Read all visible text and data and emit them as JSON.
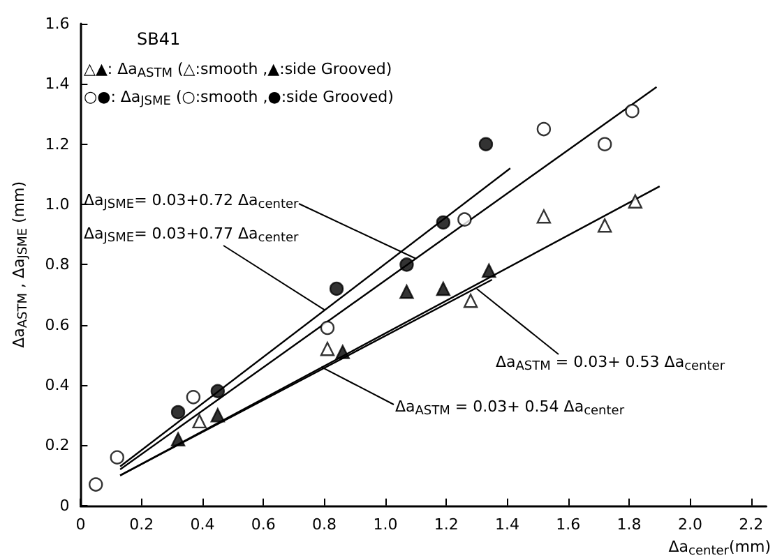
{
  "chart_data": {
    "type": "scatter",
    "legend_title": "SB41",
    "xlabel": "Δa$_{center}$(mm)",
    "ylabel": "Δa$_{ASTM}$ , Δa$_{JSME}$ (mm)",
    "xlim": [
      0,
      2.25
    ],
    "ylim": [
      0,
      1.6
    ],
    "xticks": [
      {
        "value": 0,
        "label": "0"
      },
      0.2,
      0.4,
      0.6,
      0.8,
      {
        "value": 1,
        "label": "1.0"
      },
      1.2,
      1.4,
      1.6,
      1.8,
      {
        "value": 2,
        "label": "2.0"
      },
      2.2
    ],
    "yticks": [
      {
        "value": 0,
        "label": "0"
      },
      0.2,
      0.4,
      0.6,
      0.8,
      {
        "value": 1,
        "label": "1.0"
      },
      1.2,
      1.4,
      1.6
    ],
    "grid": false,
    "series": [
      {
        "marker": "circle",
        "color": "#ffffff",
        "x": [
          0.05,
          0.12,
          0.37,
          0.81,
          1.26,
          1.52,
          1.72,
          1.81
        ],
        "values": [
          0.07,
          0.16,
          0.36,
          0.59,
          0.95,
          1.25,
          1.2,
          1.31
        ]
      },
      {
        "marker": "circle",
        "color": "#000000",
        "x": [
          0.32,
          0.45,
          0.84,
          1.07,
          1.19,
          1.33
        ],
        "values": [
          0.31,
          0.38,
          0.72,
          0.8,
          0.94,
          1.2
        ]
      },
      {
        "marker": "triangle",
        "color": "#ffffff",
        "x": [
          0.39,
          0.81,
          1.28,
          1.52,
          1.72,
          1.82
        ],
        "values": [
          0.28,
          0.52,
          0.68,
          0.96,
          0.93,
          1.01
        ]
      },
      {
        "marker": "triangle",
        "color": "#000000",
        "x": [
          0.32,
          0.45,
          0.86,
          1.07,
          1.19,
          1.34
        ],
        "values": [
          0.22,
          0.3,
          0.51,
          0.71,
          0.72,
          0.78
        ]
      },
      {
        "type": "line",
        "marker": "none",
        "color": "#000000",
        "x": [
          0.13,
          1.89
        ],
        "values": [
          0.12,
          1.39
        ]
      },
      {
        "type": "line",
        "marker": "none",
        "color": "#000000",
        "x": [
          0.13,
          1.41
        ],
        "values": [
          0.13,
          1.12
        ]
      },
      {
        "type": "line",
        "marker": "none",
        "color": "#000000",
        "x": [
          0.13,
          1.9
        ],
        "values": [
          0.1,
          1.06
        ]
      },
      {
        "type": "line",
        "marker": "none",
        "color": "#000000",
        "x": [
          0.13,
          1.35
        ],
        "values": [
          0.1,
          0.75
        ]
      }
    ],
    "annotations": [
      "△▲: Δa$_{ASTM}$ (△:smooth ,▲:side Grooved)",
      "○●: Δa$_{JSME}$ (○:smooth ,●:side Grooved)",
      {
        "text": "Δa$_{JSME}$= 0.03+0.72 Δa$_{center}$",
        "x": 1.1,
        "y": 0.82
      },
      {
        "text": "Δa$_{JSME}$= 0.03+0.77 Δa$_{center}$",
        "x": 0.8,
        "y": 0.65
      },
      {
        "text": "Δa$_{ASTM}$ = 0.03+ 0.53 Δa$_{center}$",
        "x": 1.3,
        "y": 0.72
      },
      {
        "text": "Δa$_{ASTM}$ = 0.03+ 0.54 Δa$_{center}$",
        "x": 0.79,
        "y": 0.46
      }
    ]
  }
}
